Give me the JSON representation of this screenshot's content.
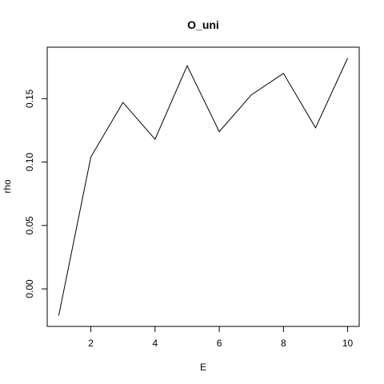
{
  "chart_data": {
    "type": "line",
    "title": "O_uni",
    "xlabel": "E",
    "ylabel": "rho",
    "x": [
      1,
      2,
      3,
      4,
      5,
      6,
      7,
      8,
      9,
      10
    ],
    "series": [
      {
        "values": [
          -0.021,
          0.104,
          0.147,
          0.118,
          0.176,
          0.124,
          0.153,
          0.17,
          0.127,
          0.182
        ]
      }
    ],
    "xlim": [
      0.64,
      10.36
    ],
    "ylim": [
      -0.0296,
      0.1906
    ],
    "x_ticks": [
      2,
      4,
      6,
      8,
      10
    ],
    "y_ticks": [
      0.0,
      0.05,
      0.1,
      0.15
    ],
    "x_tick_labels": [
      "2",
      "4",
      "6",
      "8",
      "10"
    ],
    "y_tick_labels": [
      "0.00",
      "0.05",
      "0.10",
      "0.15"
    ],
    "grid": false,
    "legend": "none",
    "line_color": "#000000"
  }
}
